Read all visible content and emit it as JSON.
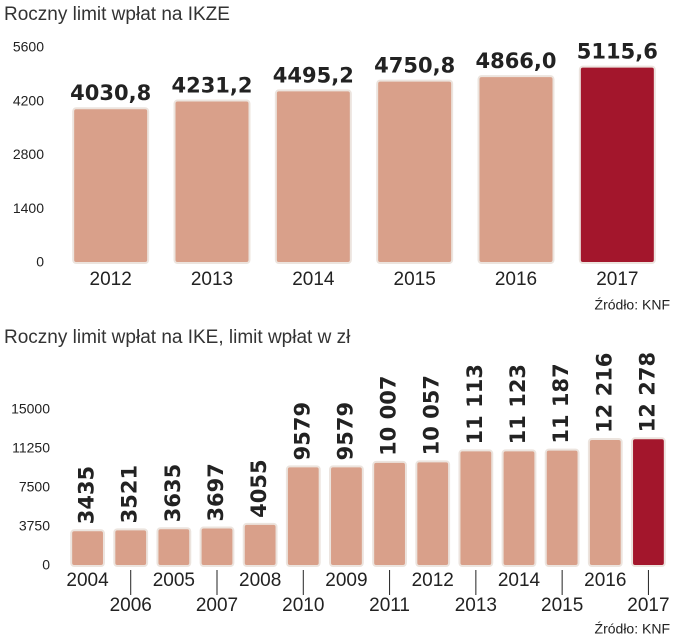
{
  "chart_data": [
    {
      "type": "bar",
      "title": "Roczny limit wpłat na IKZE",
      "categories": [
        "2012",
        "2013",
        "2014",
        "2015",
        "2016",
        "2017"
      ],
      "values": [
        4030.8,
        4231.2,
        4495.2,
        4750.8,
        4866.0,
        5115.6
      ],
      "value_labels": [
        "4030,8",
        "4231,2",
        "4495,2",
        "4750,8",
        "4866,0",
        "5115,6"
      ],
      "colors": [
        "#d9a08a",
        "#d9a08a",
        "#d9a08a",
        "#d9a08a",
        "#d9a08a",
        "#a3162c"
      ],
      "ylim": [
        0,
        5600
      ],
      "yticks": [
        0,
        1400,
        2800,
        4200,
        5600
      ],
      "value_label_orientation": "horizontal",
      "category_label_rows": 1,
      "source": "Źródło: KNF"
    },
    {
      "type": "bar",
      "title": "Roczny limit wpłat na IKE, limit wpłat w zł",
      "categories": [
        "2004",
        "2006",
        "2005",
        "2007",
        "2008",
        "2010",
        "2009",
        "2011",
        "2012",
        "2013",
        "2014",
        "2015",
        "2016",
        "2017"
      ],
      "values": [
        3435,
        3521,
        3635,
        3697,
        4055,
        9579,
        9579,
        10007,
        10057,
        11113,
        11123,
        11187,
        12216,
        12278
      ],
      "value_labels": [
        "3435",
        "3521",
        "3635",
        "3697",
        "4055",
        "9579",
        "9579",
        "10 007",
        "10 057",
        "11 113",
        "11 123",
        "11 187",
        "12 216",
        "12 278"
      ],
      "colors": [
        "#d9a08a",
        "#d9a08a",
        "#d9a08a",
        "#d9a08a",
        "#d9a08a",
        "#d9a08a",
        "#d9a08a",
        "#d9a08a",
        "#d9a08a",
        "#d9a08a",
        "#d9a08a",
        "#d9a08a",
        "#d9a08a",
        "#a3162c"
      ],
      "ylim": [
        0,
        15000
      ],
      "yticks": [
        0,
        3750,
        7500,
        11250,
        15000
      ],
      "value_label_orientation": "vertical",
      "category_label_rows": 2,
      "source": "Źródło: KNF"
    }
  ]
}
